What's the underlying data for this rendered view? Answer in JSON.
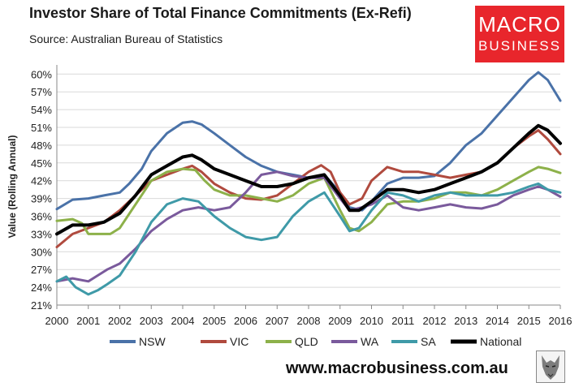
{
  "header": {
    "title": "Investor Share of Total Finance Commitments (Ex-Refi)",
    "source": "Source: Australian Bureau of Statistics"
  },
  "logo": {
    "line1": "MACRO",
    "line2": "BUSINESS"
  },
  "footer": {
    "url": "www.macrobusiness.com.au"
  },
  "chart_data": {
    "type": "line",
    "title": "Investor Share of Total Finance Commitments (Ex-Refi)",
    "subtitle": "Source: Australian Bureau of Statistics",
    "xlabel": "",
    "ylabel": "Value (Rolling Annual)",
    "xlim": [
      2000,
      2016
    ],
    "ylim": [
      21,
      61
    ],
    "x_ticks": [
      "2000",
      "2001",
      "2002",
      "2003",
      "2004",
      "2005",
      "2006",
      "2007",
      "2008",
      "2009",
      "2010",
      "2011",
      "2012",
      "2013",
      "2014",
      "2015",
      "2016"
    ],
    "y_ticks": [
      "21%",
      "24%",
      "27%",
      "30%",
      "33%",
      "36%",
      "39%",
      "42%",
      "45%",
      "48%",
      "51%",
      "54%",
      "57%",
      "60%"
    ],
    "grid": "horizontal",
    "legend": "bottom",
    "series": [
      {
        "name": "NSW",
        "color": "#4a72a8",
        "width": 3,
        "points": [
          [
            2000,
            37.2
          ],
          [
            2000.5,
            38.8
          ],
          [
            2001,
            39.0
          ],
          [
            2001.5,
            39.5
          ],
          [
            2002,
            40.0
          ],
          [
            2002.3,
            41.5
          ],
          [
            2002.7,
            44.0
          ],
          [
            2003,
            47.0
          ],
          [
            2003.5,
            50.0
          ],
          [
            2004,
            51.8
          ],
          [
            2004.3,
            52.0
          ],
          [
            2004.6,
            51.5
          ],
          [
            2005,
            50.0
          ],
          [
            2005.5,
            48.0
          ],
          [
            2006,
            46.0
          ],
          [
            2006.5,
            44.5
          ],
          [
            2007,
            43.5
          ],
          [
            2007.5,
            43.0
          ],
          [
            2008,
            42.5
          ],
          [
            2008.5,
            43.0
          ],
          [
            2009,
            40.0
          ],
          [
            2009.3,
            37.5
          ],
          [
            2009.7,
            37.0
          ],
          [
            2010,
            38.5
          ],
          [
            2010.5,
            41.5
          ],
          [
            2011,
            42.5
          ],
          [
            2011.5,
            42.5
          ],
          [
            2012,
            42.8
          ],
          [
            2012.5,
            45.0
          ],
          [
            2013,
            48.0
          ],
          [
            2013.5,
            50.0
          ],
          [
            2014,
            53.0
          ],
          [
            2014.5,
            56.0
          ],
          [
            2015,
            59.0
          ],
          [
            2015.3,
            60.3
          ],
          [
            2015.6,
            59.0
          ],
          [
            2016,
            55.5
          ]
        ]
      },
      {
        "name": "VIC",
        "color": "#b04a3e",
        "width": 3,
        "points": [
          [
            2000,
            30.8
          ],
          [
            2000.5,
            33.0
          ],
          [
            2001,
            34.0
          ],
          [
            2001.5,
            35.0
          ],
          [
            2002,
            37.0
          ],
          [
            2002.5,
            39.5
          ],
          [
            2003,
            42.0
          ],
          [
            2003.5,
            43.0
          ],
          [
            2004,
            44.0
          ],
          [
            2004.3,
            44.5
          ],
          [
            2004.6,
            43.5
          ],
          [
            2005,
            41.5
          ],
          [
            2005.5,
            40.0
          ],
          [
            2006,
            39.0
          ],
          [
            2006.5,
            38.8
          ],
          [
            2007,
            39.5
          ],
          [
            2007.5,
            41.5
          ],
          [
            2008,
            43.5
          ],
          [
            2008.4,
            44.6
          ],
          [
            2008.7,
            43.5
          ],
          [
            2009,
            40.0
          ],
          [
            2009.3,
            38.0
          ],
          [
            2009.7,
            39.0
          ],
          [
            2010,
            42.0
          ],
          [
            2010.5,
            44.3
          ],
          [
            2011,
            43.5
          ],
          [
            2011.5,
            43.5
          ],
          [
            2012,
            43.0
          ],
          [
            2012.5,
            42.5
          ],
          [
            2013,
            43.0
          ],
          [
            2013.5,
            43.5
          ],
          [
            2014,
            45.0
          ],
          [
            2014.5,
            47.5
          ],
          [
            2015,
            49.5
          ],
          [
            2015.3,
            50.5
          ],
          [
            2015.6,
            49.0
          ],
          [
            2016,
            46.5
          ]
        ]
      },
      {
        "name": "QLD",
        "color": "#8db14a",
        "width": 3,
        "points": [
          [
            2000,
            35.2
          ],
          [
            2000.5,
            35.5
          ],
          [
            2000.8,
            34.8
          ],
          [
            2001,
            33.0
          ],
          [
            2001.3,
            33.0
          ],
          [
            2001.7,
            33.0
          ],
          [
            2002,
            34.0
          ],
          [
            2002.5,
            38.0
          ],
          [
            2003,
            42.0
          ],
          [
            2003.5,
            43.5
          ],
          [
            2004,
            44.0
          ],
          [
            2004.4,
            43.8
          ],
          [
            2004.7,
            42.0
          ],
          [
            2005,
            40.5
          ],
          [
            2005.5,
            39.5
          ],
          [
            2006,
            39.5
          ],
          [
            2006.5,
            39.0
          ],
          [
            2007,
            38.5
          ],
          [
            2007.5,
            39.5
          ],
          [
            2008,
            41.5
          ],
          [
            2008.5,
            42.5
          ],
          [
            2009,
            37.0
          ],
          [
            2009.3,
            34.0
          ],
          [
            2009.6,
            33.5
          ],
          [
            2010,
            35.0
          ],
          [
            2010.5,
            38.0
          ],
          [
            2011,
            38.5
          ],
          [
            2011.5,
            38.5
          ],
          [
            2012,
            39.0
          ],
          [
            2012.5,
            40.0
          ],
          [
            2013,
            40.0
          ],
          [
            2013.5,
            39.5
          ],
          [
            2014,
            40.5
          ],
          [
            2014.5,
            42.0
          ],
          [
            2015,
            43.5
          ],
          [
            2015.3,
            44.3
          ],
          [
            2015.6,
            44.0
          ],
          [
            2016,
            43.3
          ]
        ]
      },
      {
        "name": "WA",
        "color": "#7a5a9c",
        "width": 3,
        "points": [
          [
            2000,
            25.0
          ],
          [
            2000.5,
            25.5
          ],
          [
            2001,
            25.0
          ],
          [
            2001.3,
            26.0
          ],
          [
            2001.6,
            27.0
          ],
          [
            2002,
            28.0
          ],
          [
            2002.5,
            30.5
          ],
          [
            2003,
            33.5
          ],
          [
            2003.5,
            35.5
          ],
          [
            2004,
            37.0
          ],
          [
            2004.5,
            37.5
          ],
          [
            2005,
            37.0
          ],
          [
            2005.5,
            37.5
          ],
          [
            2006,
            40.0
          ],
          [
            2006.5,
            43.0
          ],
          [
            2007,
            43.5
          ],
          [
            2007.5,
            42.8
          ],
          [
            2008,
            42.5
          ],
          [
            2008.5,
            42.5
          ],
          [
            2009,
            39.0
          ],
          [
            2009.3,
            37.0
          ],
          [
            2009.7,
            37.5
          ],
          [
            2010,
            38.0
          ],
          [
            2010.5,
            39.5
          ],
          [
            2011,
            37.5
          ],
          [
            2011.5,
            37.0
          ],
          [
            2012,
            37.5
          ],
          [
            2012.5,
            38.0
          ],
          [
            2013,
            37.5
          ],
          [
            2013.5,
            37.3
          ],
          [
            2014,
            38.0
          ],
          [
            2014.5,
            39.5
          ],
          [
            2015,
            40.5
          ],
          [
            2015.3,
            41.0
          ],
          [
            2015.6,
            40.5
          ],
          [
            2016,
            39.3
          ]
        ]
      },
      {
        "name": "SA",
        "color": "#3f9aa8",
        "width": 3,
        "points": [
          [
            2000,
            25.0
          ],
          [
            2000.3,
            25.8
          ],
          [
            2000.6,
            24.0
          ],
          [
            2001,
            22.8
          ],
          [
            2001.3,
            23.5
          ],
          [
            2001.6,
            24.5
          ],
          [
            2002,
            26.0
          ],
          [
            2002.5,
            30.0
          ],
          [
            2003,
            35.0
          ],
          [
            2003.5,
            38.0
          ],
          [
            2004,
            39.0
          ],
          [
            2004.5,
            38.5
          ],
          [
            2005,
            36.0
          ],
          [
            2005.5,
            34.0
          ],
          [
            2006,
            32.5
          ],
          [
            2006.5,
            32.0
          ],
          [
            2007,
            32.5
          ],
          [
            2007.5,
            36.0
          ],
          [
            2008,
            38.5
          ],
          [
            2008.5,
            40.0
          ],
          [
            2009,
            36.0
          ],
          [
            2009.3,
            33.5
          ],
          [
            2009.6,
            34.0
          ],
          [
            2010,
            37.0
          ],
          [
            2010.5,
            40.0
          ],
          [
            2011,
            39.5
          ],
          [
            2011.5,
            38.5
          ],
          [
            2012,
            39.5
          ],
          [
            2012.5,
            40.0
          ],
          [
            2013,
            39.5
          ],
          [
            2013.5,
            39.5
          ],
          [
            2014,
            39.5
          ],
          [
            2014.5,
            40.0
          ],
          [
            2015,
            41.0
          ],
          [
            2015.3,
            41.5
          ],
          [
            2015.6,
            40.5
          ],
          [
            2016,
            40.0
          ]
        ]
      },
      {
        "name": "National",
        "color": "#000000",
        "width": 4,
        "points": [
          [
            2000,
            33.0
          ],
          [
            2000.5,
            34.5
          ],
          [
            2001,
            34.5
          ],
          [
            2001.5,
            35.0
          ],
          [
            2002,
            36.5
          ],
          [
            2002.5,
            39.5
          ],
          [
            2003,
            43.0
          ],
          [
            2003.5,
            44.5
          ],
          [
            2004,
            46.0
          ],
          [
            2004.3,
            46.3
          ],
          [
            2004.6,
            45.5
          ],
          [
            2005,
            44.0
          ],
          [
            2005.5,
            43.0
          ],
          [
            2006,
            42.0
          ],
          [
            2006.5,
            41.0
          ],
          [
            2007,
            41.0
          ],
          [
            2007.5,
            41.5
          ],
          [
            2008,
            42.5
          ],
          [
            2008.5,
            43.0
          ],
          [
            2009,
            39.5
          ],
          [
            2009.3,
            37.0
          ],
          [
            2009.6,
            37.0
          ],
          [
            2010,
            38.5
          ],
          [
            2010.5,
            40.5
          ],
          [
            2011,
            40.5
          ],
          [
            2011.5,
            40.0
          ],
          [
            2012,
            40.5
          ],
          [
            2012.5,
            41.5
          ],
          [
            2013,
            42.5
          ],
          [
            2013.5,
            43.5
          ],
          [
            2014,
            45.0
          ],
          [
            2014.5,
            47.5
          ],
          [
            2015,
            50.0
          ],
          [
            2015.3,
            51.3
          ],
          [
            2015.6,
            50.5
          ],
          [
            2016,
            48.3
          ]
        ]
      }
    ]
  }
}
